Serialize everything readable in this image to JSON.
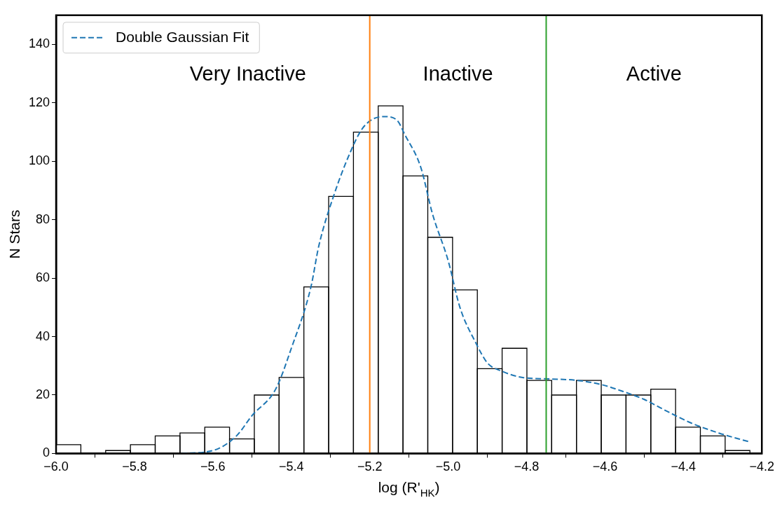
{
  "chart_data": {
    "type": "histogram",
    "xlabel": "log (R'$_{HK}$)",
    "ylabel": "N Stars",
    "xlim": [
      -6.0,
      -4.2
    ],
    "xticks": [
      {
        "value": -6.0,
        "label": "−6.0"
      },
      {
        "value": -5.8,
        "label": "−5.8"
      },
      {
        "value": -5.6,
        "label": "−5.6"
      },
      {
        "value": -5.4,
        "label": "−5.4"
      },
      {
        "value": -5.2,
        "label": "−5.2"
      },
      {
        "value": -5.0,
        "label": "−5.0"
      },
      {
        "value": -4.8,
        "label": "−4.8"
      },
      {
        "value": -4.6,
        "label": "−4.6"
      },
      {
        "value": -4.4,
        "label": "−4.4"
      },
      {
        "value": -4.2,
        "label": "−4.2"
      }
    ],
    "ylim": [
      0,
      150
    ],
    "yticks": [
      0,
      20,
      40,
      60,
      80,
      100,
      120,
      140
    ],
    "color": "#ffffff",
    "bins": [
      -6.0,
      -5.9368,
      -5.8736,
      -5.8104,
      -5.7472,
      -5.684,
      -5.6208,
      -5.5576,
      -5.4944,
      -5.4312,
      -5.368,
      -5.3048,
      -5.2416,
      -5.1784,
      -5.1152,
      -5.052,
      -4.9888,
      -4.9256,
      -4.8624,
      -4.7992,
      -4.736,
      -4.6728,
      -4.6096,
      -4.5464,
      -4.4832,
      -4.42,
      -4.3568,
      -4.2936,
      -4.2304
    ],
    "values": [
      3,
      0,
      1,
      3,
      6,
      7,
      9,
      5,
      20,
      26,
      57,
      88,
      110,
      119,
      95,
      74,
      56,
      29,
      36,
      25,
      20,
      25,
      20,
      20,
      22,
      9,
      6,
      1
    ],
    "series": [
      {
        "type": "line",
        "name": "Double Gaussian Fit",
        "color": "#1f77b4",
        "line_style": "dashed",
        "marker": "none",
        "x": [
          -5.68,
          -5.6,
          -5.54,
          -5.5,
          -5.44,
          -5.4,
          -5.35,
          -5.33,
          -5.29,
          -5.25,
          -5.22,
          -5.19,
          -5.16,
          -5.13,
          -5.11,
          -5.07,
          -5.04,
          -5.0,
          -4.97,
          -4.93,
          -4.9,
          -4.86,
          -4.81,
          -4.74,
          -4.67,
          -4.61,
          -4.56,
          -4.5,
          -4.45,
          -4.38,
          -4.31,
          -4.23
        ],
        "values": [
          0,
          1,
          6,
          13,
          22,
          36,
          57,
          71,
          89,
          103,
          111,
          114.6,
          115.3,
          114,
          109,
          98,
          82,
          66,
          50,
          38,
          31,
          28,
          26,
          25.5,
          25,
          23.6,
          21.5,
          18.5,
          15,
          10.4,
          7,
          3.9
        ]
      }
    ],
    "ref_lines": [
      {
        "axis": "x",
        "value": -5.2,
        "color": "#ff7f0e"
      },
      {
        "axis": "x",
        "value": -4.75,
        "color": "#2ca02c"
      }
    ],
    "annotations": [
      "Very Inactive",
      "Inactive",
      "Active"
    ],
    "legend": "top left",
    "grid": false
  }
}
